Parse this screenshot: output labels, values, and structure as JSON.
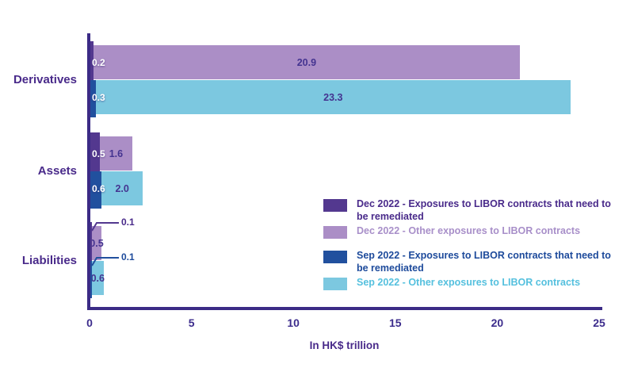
{
  "chart_data": {
    "type": "bar",
    "orientation": "horizontal",
    "stacked": true,
    "grid": false,
    "categories": [
      "Derivatives",
      "Assets",
      "Liabilities"
    ],
    "series": [
      {
        "name": "Dec 2022 - Exposures to LIBOR contracts that need to be remediated",
        "group": "Dec 2022",
        "role": "remediated",
        "color": "#53388f",
        "text_color": "#492a8a",
        "values": [
          0.2,
          0.5,
          0.1
        ]
      },
      {
        "name": "Dec 2022 - Other exposures to LIBOR contracts",
        "group": "Dec 2022",
        "role": "other",
        "color": "#ab8ec6",
        "text_color": "#a88fc9",
        "values": [
          20.9,
          1.6,
          0.5
        ]
      },
      {
        "name": "Sep 2022 - Exposures to LIBOR contracts that need to be remediated",
        "group": "Sep 2022",
        "role": "remediated",
        "color": "#21509e",
        "text_color": "#1d4a9b",
        "values": [
          0.3,
          0.6,
          0.1
        ]
      },
      {
        "name": "Sep 2022 - Other exposures to LIBOR contracts",
        "group": "Sep 2022",
        "role": "other",
        "color": "#7cc8e0",
        "text_color": "#55c0de",
        "values": [
          23.3,
          2.0,
          0.6
        ]
      }
    ],
    "xlabel": "In HK$ trillion",
    "xticks": [
      0,
      5,
      10,
      15,
      20,
      25
    ],
    "xlim": [
      0,
      25
    ],
    "callout_categories": [
      "Liabilities"
    ],
    "legend_position": "center-right",
    "colors": {
      "axis": "#3b2b86",
      "axis_text": "#492a8a",
      "inside_label": "#443390",
      "white_label": "#ffffff"
    }
  }
}
